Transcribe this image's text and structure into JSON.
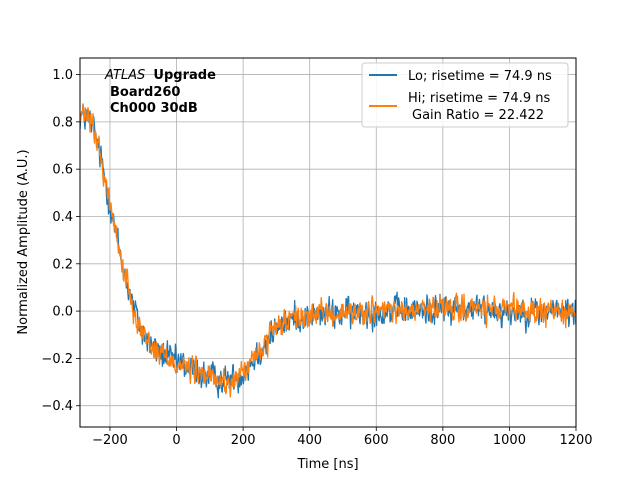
{
  "chart_data": {
    "type": "line",
    "xlabel": "Time [ns]",
    "ylabel": "Normalized Amplitude (A.U.)",
    "xlim": [
      -290,
      1200
    ],
    "ylim": [
      -0.49,
      1.07
    ],
    "x_ticks": [
      -200,
      0,
      200,
      400,
      600,
      800,
      1000,
      1200
    ],
    "y_ticks": [
      -0.4,
      -0.2,
      0.0,
      0.2,
      0.4,
      0.6,
      0.8,
      1.0
    ],
    "x_tick_labels": [
      "−200",
      "0",
      "200",
      "400",
      "600",
      "800",
      "1000",
      "1200"
    ],
    "y_tick_labels": [
      "−0.4",
      "−0.2",
      "0.0",
      "0.2",
      "0.4",
      "0.6",
      "0.8",
      "1.0"
    ],
    "grid": true,
    "legend_position": "top-right",
    "annotation": {
      "atlas": "ATLAS",
      "upgrade": "Upgrade",
      "board": "Board260",
      "channel": "Ch000 30dB"
    },
    "legend": [
      {
        "label": "Lo; risetime = 74.9 ns",
        "color": "#1f77b4"
      },
      {
        "label_line1": "Hi; risetime = 74.9 ns",
        "label_line2": "Gain Ratio = 22.422",
        "color": "#ff7f0e"
      }
    ],
    "series": [
      {
        "name": "Lo; risetime = 74.9 ns",
        "color": "#1f77b4",
        "noise": 0.035,
        "envelope_x": [
          -290,
          -270,
          -250,
          -220,
          -190,
          -160,
          -130,
          -100,
          -60,
          -20,
          20,
          60,
          100,
          140,
          170,
          200,
          240,
          280,
          320,
          360,
          400,
          450,
          500,
          600,
          700,
          800,
          900,
          1000,
          1100,
          1200
        ],
        "envelope_y": [
          0.82,
          0.82,
          0.78,
          0.6,
          0.38,
          0.18,
          0.02,
          -0.1,
          -0.17,
          -0.2,
          -0.23,
          -0.26,
          -0.28,
          -0.29,
          -0.29,
          -0.26,
          -0.19,
          -0.11,
          -0.05,
          -0.03,
          -0.02,
          -0.01,
          -0.01,
          0.0,
          0.0,
          0.01,
          0.01,
          0.0,
          0.0,
          0.0
        ]
      },
      {
        "name": "Hi; risetime = 74.9 ns Gain Ratio = 22.422",
        "color": "#ff7f0e",
        "noise": 0.03,
        "envelope_x": [
          -290,
          -270,
          -250,
          -220,
          -190,
          -160,
          -130,
          -100,
          -60,
          -20,
          20,
          60,
          100,
          140,
          170,
          200,
          240,
          280,
          320,
          360,
          400,
          450,
          500,
          600,
          700,
          800,
          900,
          1000,
          1100,
          1200
        ],
        "envelope_y": [
          0.82,
          0.83,
          0.78,
          0.6,
          0.38,
          0.18,
          0.02,
          -0.1,
          -0.17,
          -0.2,
          -0.23,
          -0.26,
          -0.28,
          -0.3,
          -0.3,
          -0.26,
          -0.19,
          -0.11,
          -0.05,
          -0.03,
          -0.02,
          -0.01,
          -0.01,
          0.0,
          0.0,
          0.01,
          0.01,
          0.0,
          0.0,
          0.0
        ]
      }
    ]
  }
}
